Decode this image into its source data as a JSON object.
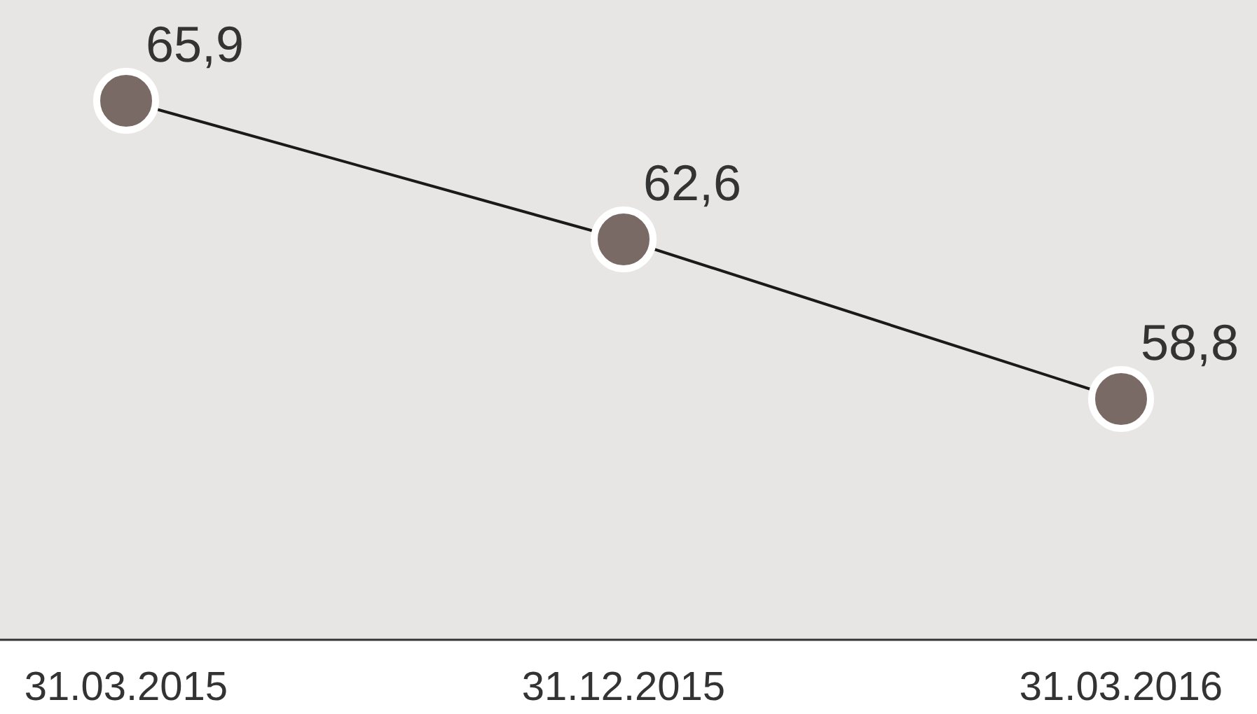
{
  "chart_data": {
    "type": "line",
    "categories": [
      "31.03.2015",
      "31.12.2015",
      "31.03.2016"
    ],
    "series": [
      {
        "color": "#7a6a65",
        "values": [
          65.9,
          62.6,
          58.8
        ],
        "value_labels": [
          "65,9",
          "62,6",
          "58,8"
        ]
      }
    ],
    "marker": "circle",
    "line_style": "solid"
  }
}
